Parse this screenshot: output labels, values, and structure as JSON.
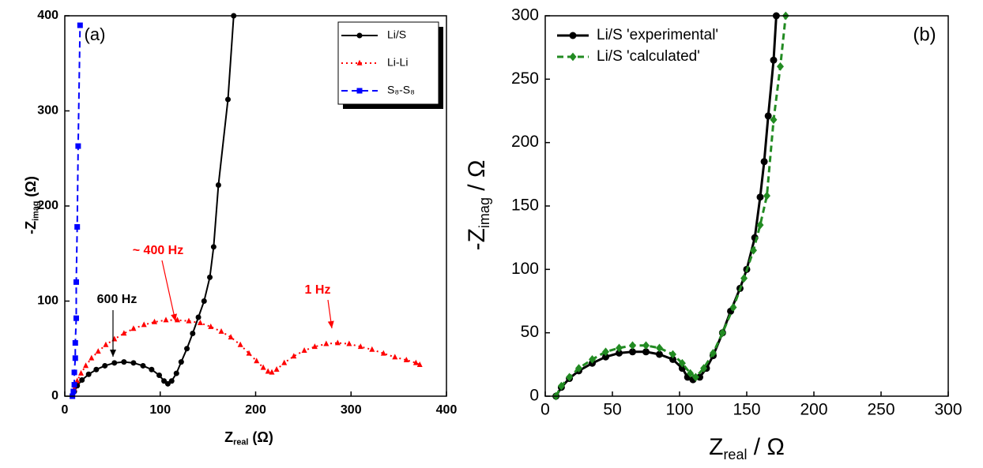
{
  "chart_data": [
    {
      "type": "line",
      "label": "(a)",
      "xlabel": [
        "Z",
        "real",
        " (Ω)"
      ],
      "ylabel": [
        "-Z",
        "imag",
        " (Ω)"
      ],
      "xlim": [
        0,
        400
      ],
      "xticks": [
        0,
        100,
        200,
        300,
        400
      ],
      "ylim": [
        0,
        400
      ],
      "yticks": [
        0,
        100,
        200,
        300,
        400
      ],
      "legend": "upper right",
      "series": [
        {
          "name": "Li/S",
          "color": "#000000",
          "marker": "circle",
          "dash": "solid",
          "x": [
            8,
            10,
            13,
            18,
            25,
            33,
            42,
            52,
            62,
            72,
            82,
            91,
            99,
            104,
            108,
            112,
            117,
            122,
            128,
            134,
            140,
            146,
            152,
            156,
            161,
            171,
            177
          ],
          "values": [
            0,
            5,
            11,
            17,
            23,
            28,
            32,
            35,
            36,
            35,
            32,
            28,
            22,
            16,
            13,
            16,
            24,
            36,
            50,
            66,
            83,
            100,
            125,
            157,
            222,
            312,
            400
          ]
        },
        {
          "name": "Li-Li",
          "color": "#ff0000",
          "marker": "triangle",
          "dash": "dotted",
          "x": [
            8,
            10,
            13,
            17,
            22,
            28,
            35,
            43,
            52,
            62,
            72,
            83,
            94,
            106,
            118,
            130,
            142,
            153,
            164,
            174,
            184,
            193,
            201,
            208,
            213,
            217,
            222,
            230,
            240,
            251,
            262,
            274,
            286,
            298,
            310,
            322,
            334,
            346,
            358,
            368,
            372
          ],
          "values": [
            0,
            8,
            16,
            24,
            32,
            40,
            47,
            54,
            60,
            66,
            71,
            75,
            78,
            80,
            80,
            79,
            77,
            73,
            68,
            62,
            54,
            45,
            37,
            30,
            26,
            25,
            28,
            35,
            42,
            48,
            52,
            55,
            56,
            55,
            52,
            49,
            45,
            41,
            38,
            35,
            33
          ]
        },
        {
          "name": "S₈-S₈",
          "color": "#0000ff",
          "marker": "square",
          "dash": "dashed",
          "x": [
            8,
            9,
            10,
            10,
            11,
            11,
            12,
            12,
            13,
            14,
            16
          ],
          "values": [
            0,
            5,
            12,
            25,
            40,
            56,
            82,
            120,
            178,
            263,
            390
          ]
        }
      ],
      "annotations": [
        {
          "text": "600 Hz",
          "color": "#000000"
        },
        {
          "text": "~ 400 Hz",
          "color": "#ff0000"
        },
        {
          "text": "1 Hz",
          "color": "#ff0000"
        }
      ]
    },
    {
      "type": "line",
      "label": "(b)",
      "xlabel": [
        "Z",
        "real",
        " / Ω"
      ],
      "ylabel": [
        "-Z",
        "imag",
        " / Ω"
      ],
      "xlim": [
        0,
        300
      ],
      "xticks": [
        0,
        50,
        100,
        150,
        200,
        250,
        300
      ],
      "ylim": [
        0,
        300
      ],
      "yticks": [
        0,
        50,
        100,
        150,
        200,
        250,
        300
      ],
      "legend": "upper left",
      "series": [
        {
          "name": "Li/S 'experimental'",
          "color": "#000000",
          "marker": "circle",
          "dash": "solid",
          "x": [
            8,
            12,
            18,
            25,
            35,
            45,
            55,
            65,
            75,
            85,
            95,
            102,
            106,
            110,
            115,
            120,
            125,
            132,
            138,
            145,
            150,
            156,
            160,
            163,
            166,
            170,
            172
          ],
          "values": [
            0,
            7,
            14,
            20,
            26,
            31,
            34,
            35,
            35,
            33,
            29,
            22,
            15,
            13,
            15,
            22,
            32,
            50,
            67,
            85,
            100,
            125,
            157,
            185,
            221,
            265,
            300
          ]
        },
        {
          "name": "Li/S 'calculated'",
          "color": "#228b22",
          "marker": "diamond",
          "dash": "dashed",
          "x": [
            8,
            12,
            18,
            25,
            35,
            45,
            55,
            65,
            75,
            85,
            95,
            102,
            108,
            112,
            118,
            125,
            132,
            140,
            148,
            155,
            160,
            165,
            170,
            175,
            179
          ],
          "values": [
            0,
            8,
            15,
            22,
            29,
            35,
            38,
            40,
            40,
            38,
            33,
            26,
            18,
            15,
            22,
            34,
            50,
            70,
            93,
            115,
            135,
            158,
            218,
            260,
            300
          ]
        }
      ]
    }
  ]
}
